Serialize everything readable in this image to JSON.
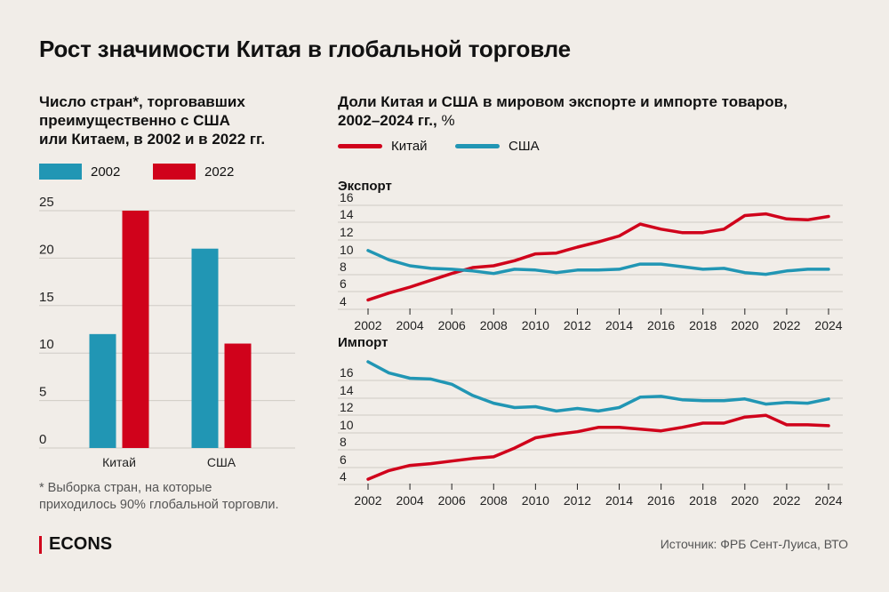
{
  "title": "Рост значимости Китая в глобальной торговле",
  "left_subtitle": [
    "Число стран*, торговавших",
    "преимущественно с США",
    "или Китаем, в 2002 и в 2022 гг."
  ],
  "right_subtitle": {
    "line1": "Доли Китая и США в мировом экспорте и импорте товаров,",
    "line2_bold": "2002–2024 гг.,",
    "line2_unit": " %"
  },
  "colors": {
    "china": "#d0021b",
    "usa": "#2196b4",
    "bg": "#f1ede8",
    "grid": "#cfcbc5"
  },
  "bar_legend": [
    {
      "label": "2002",
      "color": "#2196b4"
    },
    {
      "label": "2022",
      "color": "#d0021b"
    }
  ],
  "line_legend": [
    {
      "label": "Китай",
      "color": "#d0021b"
    },
    {
      "label": "США",
      "color": "#2196b4"
    }
  ],
  "chart_data": [
    {
      "type": "bar",
      "title": "Число стран*, торговавших преимущественно с США или Китаем, в 2002 и в 2022 гг.",
      "categories": [
        "Китай",
        "США"
      ],
      "series": [
        {
          "name": "2002",
          "values": [
            12,
            21
          ]
        },
        {
          "name": "2022",
          "values": [
            25,
            11
          ]
        }
      ],
      "yticks": [
        0,
        5,
        10,
        15,
        20,
        25
      ],
      "ylim": [
        0,
        25
      ]
    },
    {
      "type": "line",
      "title": "Экспорт",
      "x": [
        2002,
        2003,
        2004,
        2005,
        2006,
        2007,
        2008,
        2009,
        2010,
        2011,
        2012,
        2013,
        2014,
        2015,
        2016,
        2017,
        2018,
        2019,
        2020,
        2021,
        2022,
        2023,
        2024
      ],
      "series": [
        {
          "name": "Китай",
          "values": [
            4.9,
            5.7,
            6.4,
            7.2,
            8.0,
            8.7,
            8.9,
            9.5,
            10.3,
            10.4,
            11.1,
            11.7,
            12.4,
            13.8,
            13.2,
            12.8,
            12.8,
            13.2,
            14.8,
            15.0,
            14.4,
            14.3,
            14.7
          ]
        },
        {
          "name": "США",
          "values": [
            10.7,
            9.6,
            8.9,
            8.6,
            8.5,
            8.3,
            8.0,
            8.5,
            8.4,
            8.1,
            8.4,
            8.4,
            8.5,
            9.1,
            9.1,
            8.8,
            8.5,
            8.6,
            8.1,
            7.9,
            8.3,
            8.5,
            8.5
          ]
        }
      ],
      "yticks": [
        4,
        6,
        8,
        10,
        12,
        14,
        16
      ],
      "xticks": [
        2002,
        2004,
        2006,
        2008,
        2010,
        2012,
        2014,
        2016,
        2018,
        2020,
        2022,
        2024
      ],
      "ylim": [
        4,
        16
      ]
    },
    {
      "type": "line",
      "title": "Импорт",
      "x": [
        2002,
        2003,
        2004,
        2005,
        2006,
        2007,
        2008,
        2009,
        2010,
        2011,
        2012,
        2013,
        2014,
        2015,
        2016,
        2017,
        2018,
        2019,
        2020,
        2021,
        2022,
        2023,
        2024
      ],
      "series": [
        {
          "name": "Китай",
          "values": [
            4.4,
            5.4,
            6.0,
            6.2,
            6.5,
            6.8,
            7.0,
            8.0,
            9.2,
            9.6,
            9.9,
            10.4,
            10.4,
            10.2,
            10.0,
            10.4,
            10.9,
            10.9,
            11.6,
            11.8,
            10.7,
            10.7,
            10.6
          ]
        },
        {
          "name": "США",
          "values": [
            18.0,
            16.7,
            16.1,
            16.0,
            15.4,
            14.1,
            13.2,
            12.7,
            12.8,
            12.3,
            12.6,
            12.3,
            12.7,
            13.9,
            14.0,
            13.6,
            13.5,
            13.5,
            13.7,
            13.1,
            13.3,
            13.2,
            13.7
          ]
        }
      ],
      "yticks": [
        4,
        6,
        8,
        10,
        12,
        14,
        16
      ],
      "xticks": [
        2002,
        2004,
        2006,
        2008,
        2010,
        2012,
        2014,
        2016,
        2018,
        2020,
        2022,
        2024
      ],
      "ylim": [
        4,
        18
      ]
    }
  ],
  "note": [
    "* Выборка стран, на которые",
    "приходилось 90% глобальной торговли."
  ],
  "source": "Источник: ФРБ Сент-Луиса, ВТО",
  "logo": "ECONS"
}
